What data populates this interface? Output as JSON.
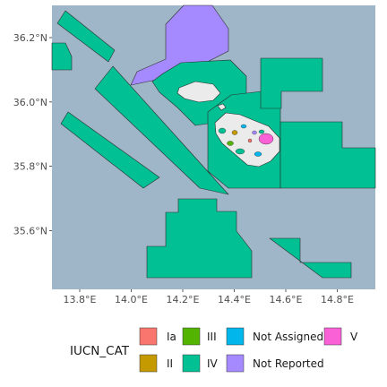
{
  "map": {
    "background_color": "#9fb5c8",
    "land_color": "#ebebeb",
    "y_ticks": [
      {
        "value": 36.2,
        "label": "36.2°N"
      },
      {
        "value": 36.0,
        "label": "36.0°N"
      },
      {
        "value": 35.8,
        "label": "35.8°N"
      },
      {
        "value": 35.6,
        "label": "35.6°N"
      }
    ],
    "x_ticks": [
      {
        "value": 13.8,
        "label": "13.8°E"
      },
      {
        "value": 14.0,
        "label": "14.0°E"
      },
      {
        "value": 14.2,
        "label": "14.2°E"
      },
      {
        "value": 14.4,
        "label": "14.4°E"
      },
      {
        "value": 14.6,
        "label": "14.6°E"
      },
      {
        "value": 14.8,
        "label": "14.8°E"
      }
    ]
  },
  "legend": {
    "title": "IUCN_CAT",
    "items": [
      {
        "label": "Ia",
        "color": "#f8766d"
      },
      {
        "label": "II",
        "color": "#c49a00"
      },
      {
        "label": "III",
        "color": "#53b400"
      },
      {
        "label": "IV",
        "color": "#00c094"
      },
      {
        "label": "Not Assigned",
        "color": "#00b6eb"
      },
      {
        "label": "Not Reported",
        "color": "#a58aff"
      },
      {
        "label": "V",
        "color": "#fb61d7"
      }
    ]
  }
}
